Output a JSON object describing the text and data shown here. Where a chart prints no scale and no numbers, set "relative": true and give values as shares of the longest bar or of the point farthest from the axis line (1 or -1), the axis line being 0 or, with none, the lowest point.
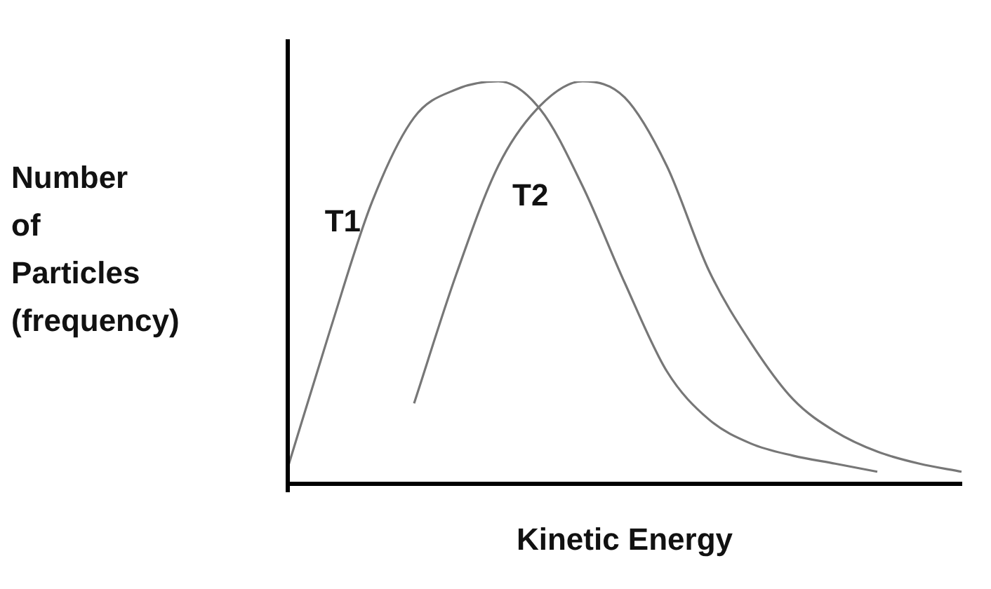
{
  "chart_data": {
    "type": "line",
    "relative": true,
    "ylabel": "Number\nof\nParticles\n(frequency)",
    "xlabel": "Kinetic Energy",
    "categories": [
      null,
      null,
      null,
      null,
      null,
      null,
      null,
      null,
      null,
      null,
      null,
      null,
      null,
      null,
      null,
      null,
      null
    ],
    "series": [
      {
        "name": "T1",
        "color": "#777777",
        "values": [
          0.04,
          0.38,
          0.7,
          0.91,
          0.98,
          1,
          0.93,
          0.74,
          0.5,
          0.28,
          0.16,
          0.1,
          0.07,
          0.05,
          0.03,
          null,
          null
        ]
      },
      {
        "name": "T2",
        "color": "#777777",
        "values": [
          null,
          null,
          null,
          0.2,
          0.52,
          0.79,
          0.94,
          1,
          0.96,
          0.79,
          0.53,
          0.35,
          0.21,
          0.13,
          0.08,
          0.05,
          0.03
        ]
      }
    ],
    "grid": false,
    "legend": false,
    "marker": "none",
    "line_style": "solid"
  }
}
